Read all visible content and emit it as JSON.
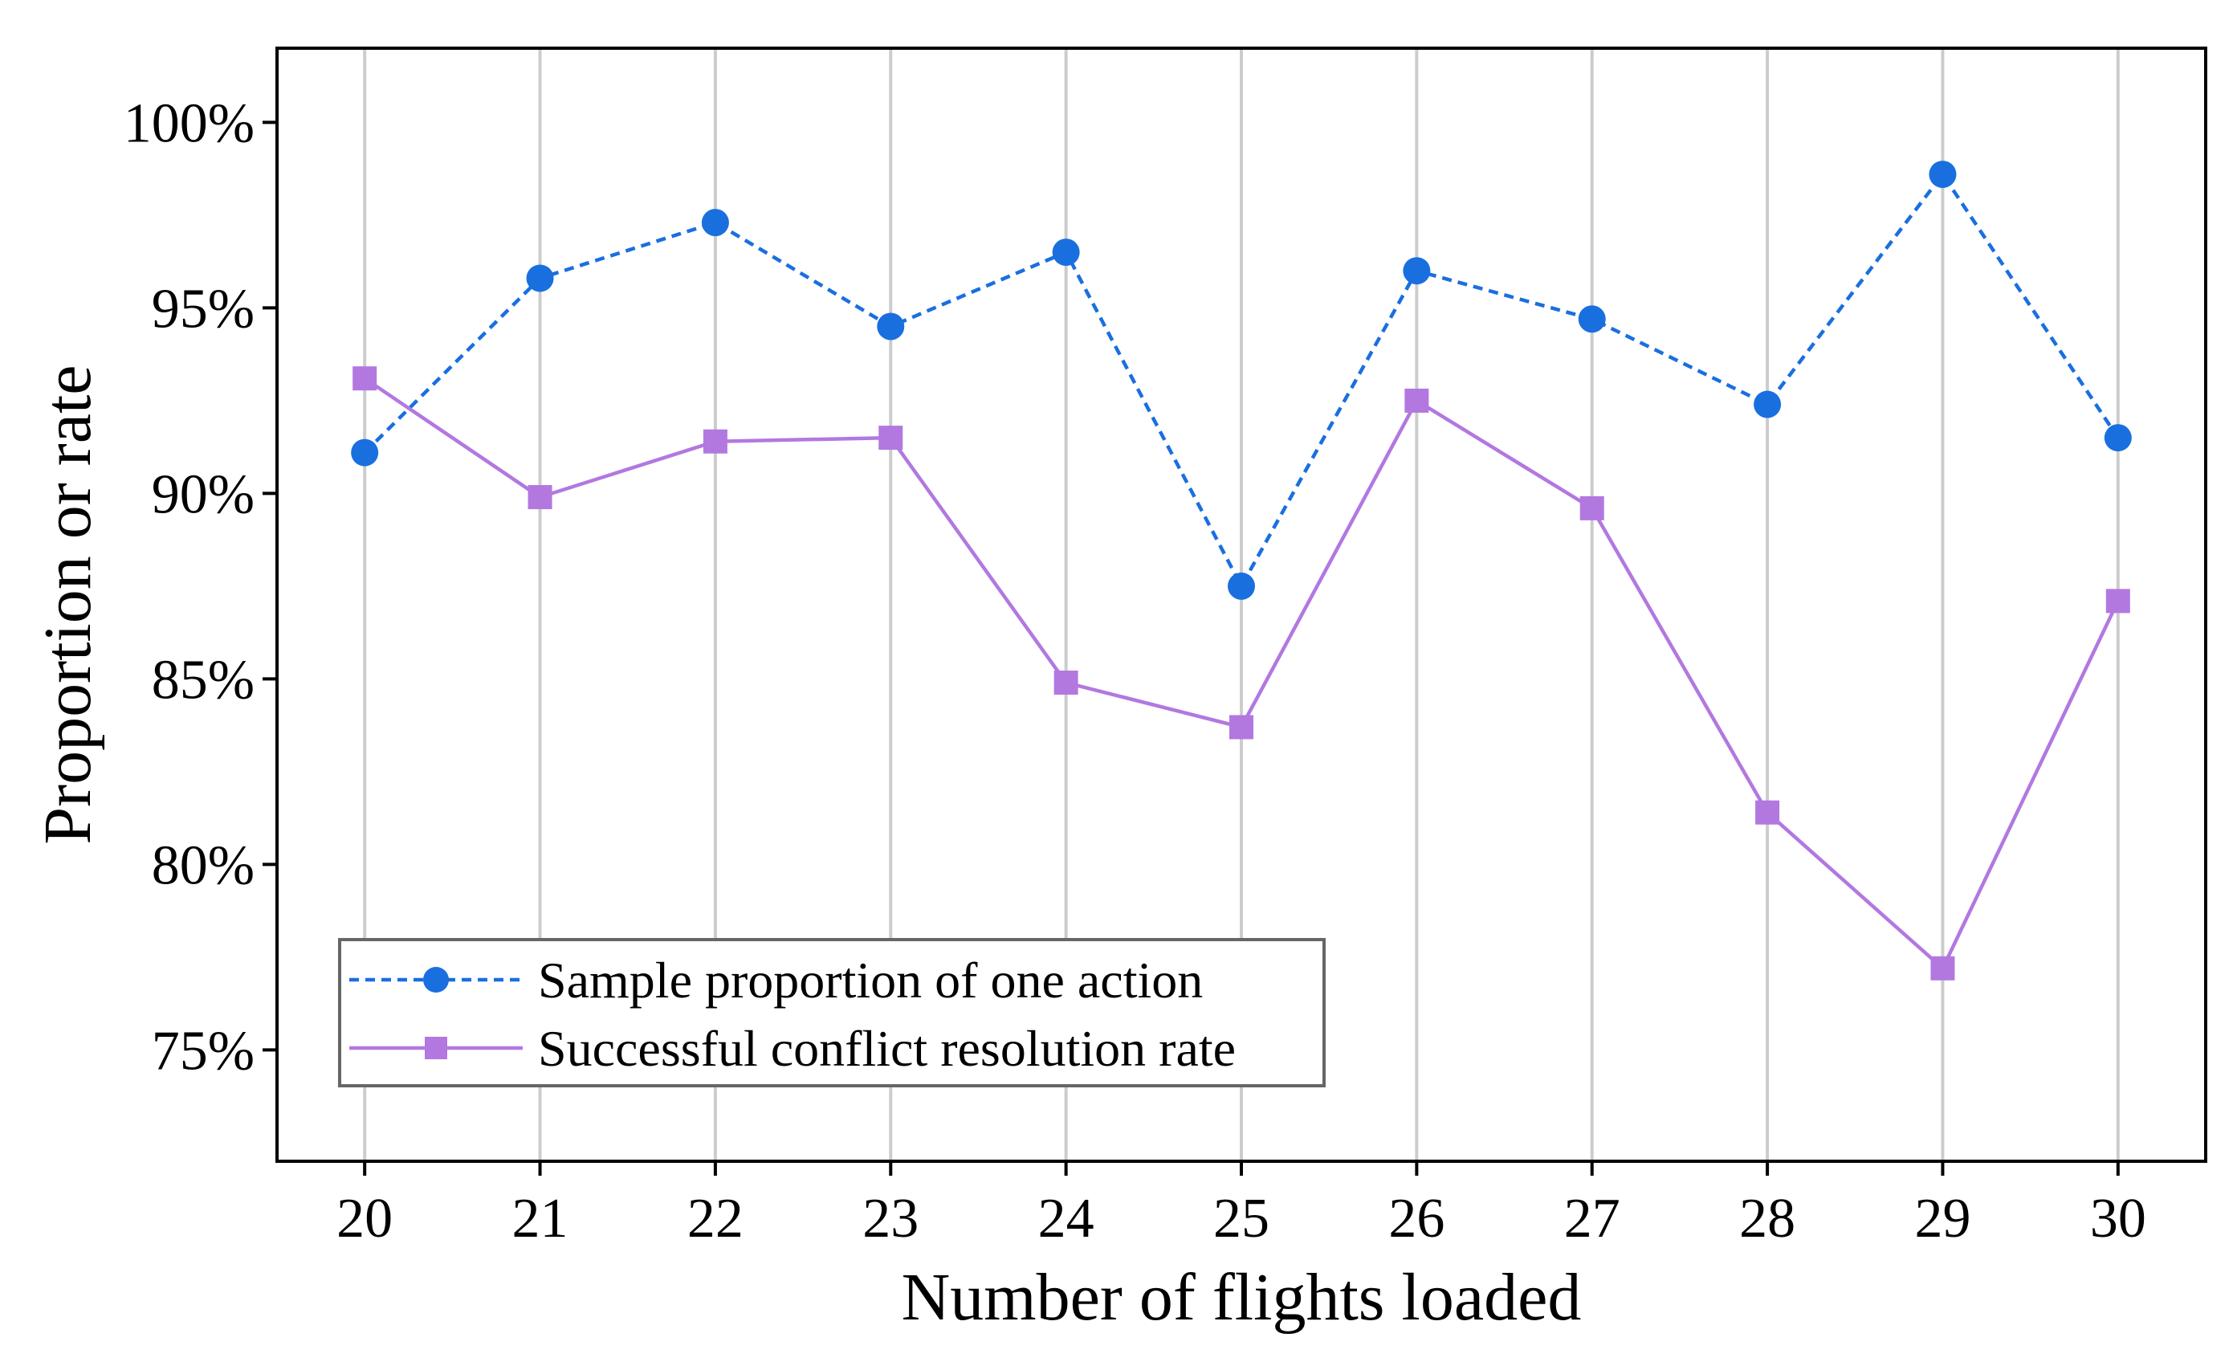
{
  "chart_data": {
    "type": "line",
    "title": "",
    "xlabel": "Number of flights loaded",
    "ylabel": "Proportion or rate",
    "x": [
      20,
      21,
      22,
      23,
      24,
      25,
      26,
      27,
      28,
      29,
      30
    ],
    "xlim": [
      19.5,
      30.5
    ],
    "ylim": [
      72.0,
      102.0
    ],
    "yticks": [
      75,
      80,
      85,
      90,
      95,
      100
    ],
    "ytick_labels": [
      "75%",
      "80%",
      "85%",
      "90%",
      "95%",
      "100%"
    ],
    "xtick_labels": [
      "20",
      "21",
      "22",
      "23",
      "24",
      "25",
      "26",
      "27",
      "28",
      "29",
      "30"
    ],
    "grid": "vertical",
    "legend_position": "lower-left",
    "series": [
      {
        "name": "Sample proportion of one action",
        "color": "#1a6fdf",
        "line_style": "dashed",
        "marker": "circle",
        "values": [
          91.1,
          95.8,
          97.3,
          94.5,
          96.5,
          87.5,
          96.0,
          94.7,
          92.4,
          98.6,
          91.5
        ]
      },
      {
        "name": "Successful conflict resolution rate",
        "color": "#b278e0",
        "line_style": "solid",
        "marker": "square",
        "values": [
          93.1,
          89.9,
          91.4,
          91.5,
          84.9,
          83.7,
          92.5,
          89.6,
          81.4,
          77.2,
          87.1
        ]
      }
    ]
  }
}
